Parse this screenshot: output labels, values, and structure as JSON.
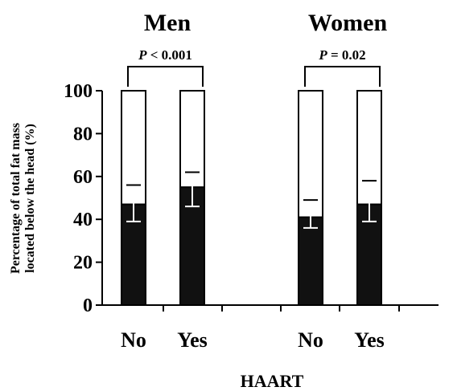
{
  "chart_data": {
    "type": "bar",
    "stacked_to_total": 100,
    "groups": [
      {
        "title": "Men",
        "p_label": "P < 0.001",
        "categories": [
          "No",
          "Yes"
        ],
        "values": [
          47,
          55
        ],
        "error_low": [
          39,
          46
        ],
        "error_high": [
          56,
          62
        ]
      },
      {
        "title": "Women",
        "p_label": "P = 0.02",
        "categories": [
          "No",
          "Yes"
        ],
        "values": [
          41,
          47
        ],
        "error_low": [
          36,
          39
        ],
        "error_high": [
          49,
          58
        ]
      }
    ],
    "ylabel_line1": "Percentage of total fat mass",
    "ylabel_line2": "located below the head (%)",
    "xlabel": "HAART",
    "yticks": [
      0,
      20,
      40,
      60,
      80,
      100
    ],
    "ylim": [
      0,
      100
    ],
    "colors": {
      "fill": "#111111",
      "empty": "#ffffff",
      "stroke": "#000000"
    }
  }
}
